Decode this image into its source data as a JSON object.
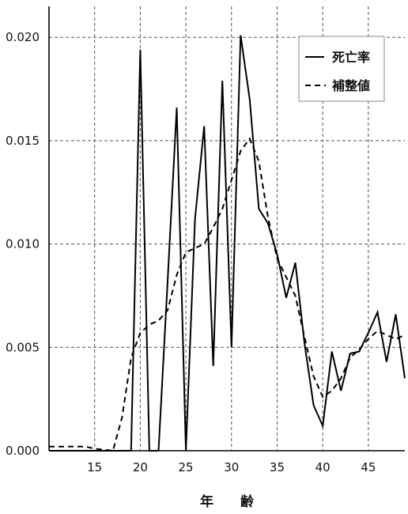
{
  "chart_data": {
    "type": "line",
    "title": "",
    "xlabel": "年　　齢",
    "ylabel": "",
    "xlim": [
      10,
      49
    ],
    "ylim": [
      0,
      0.0215
    ],
    "x_ticks": [
      15,
      20,
      25,
      30,
      35,
      40,
      45
    ],
    "x_tick_labels": [
      "15",
      "20",
      "25",
      "30",
      "35",
      "40",
      "45"
    ],
    "y_ticks": [
      0,
      0.005,
      0.01,
      0.015,
      0.02
    ],
    "y_tick_labels": [
      "0.000",
      "0.005",
      "0.010",
      "0.015",
      "0.020"
    ],
    "grid": true,
    "legend_position": "top-right",
    "series": [
      {
        "name": "死亡率",
        "style": "solid",
        "color": "#000000",
        "x": [
          10,
          15,
          19,
          20,
          21,
          22,
          23,
          24,
          25,
          26,
          27,
          28,
          29,
          30,
          31,
          32,
          33,
          34,
          35,
          36,
          37,
          38,
          39,
          40,
          41,
          42,
          43,
          44,
          45,
          46,
          47,
          48,
          49
        ],
        "y": [
          0,
          0,
          0,
          0.0194,
          0,
          0,
          0.0082,
          0.0166,
          0,
          0.0112,
          0.0157,
          0.0041,
          0.0179,
          0.005,
          0.0201,
          0.017,
          0.0117,
          0.011,
          0.0095,
          0.0074,
          0.0091,
          0.0052,
          0.0022,
          0.0012,
          0.0048,
          0.0029,
          0.0047,
          0.0048,
          0.0057,
          0.0067,
          0.0043,
          0.0066,
          0.0035
        ]
      },
      {
        "name": "補整値",
        "style": "dashed",
        "color": "#000000",
        "x": [
          10,
          14,
          15,
          17,
          18,
          19,
          20,
          21,
          22,
          23,
          24,
          25,
          26,
          27,
          28,
          29,
          30,
          31,
          32,
          33,
          34,
          35,
          36,
          37,
          38,
          39,
          40,
          41,
          42,
          43,
          44,
          45,
          46,
          47,
          48,
          49
        ],
        "y": [
          0.0002,
          0.0002,
          0.0001,
          0,
          0.0016,
          0.0045,
          0.0057,
          0.0061,
          0.0063,
          0.0068,
          0.0085,
          0.0096,
          0.0098,
          0.01,
          0.0108,
          0.0117,
          0.0131,
          0.0145,
          0.0151,
          0.014,
          0.0113,
          0.0093,
          0.0084,
          0.0075,
          0.0055,
          0.0036,
          0.0026,
          0.0029,
          0.0035,
          0.0045,
          0.0049,
          0.0054,
          0.0058,
          0.0056,
          0.0054,
          0.0056
        ]
      }
    ]
  }
}
